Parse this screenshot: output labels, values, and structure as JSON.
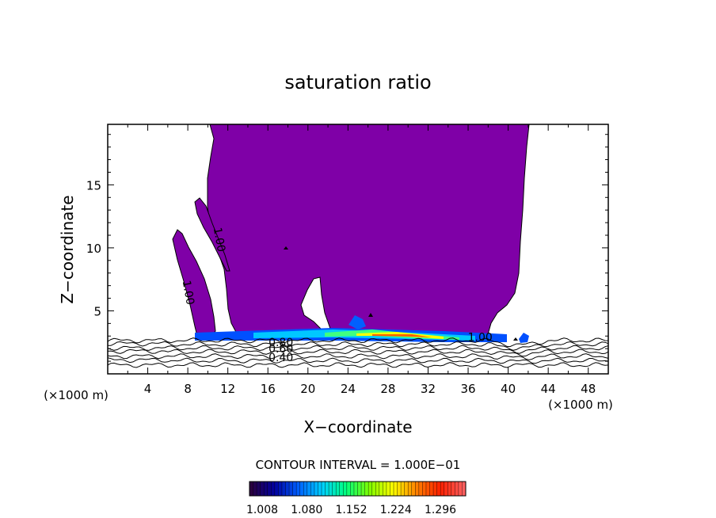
{
  "chart_data": {
    "type": "heatmap",
    "title": "saturation ratio",
    "xlabel": "X−coordinate",
    "ylabel": "Z−coordinate",
    "x_unit_label": "(×1000 m)",
    "x_unit_label_right": "(×1000 m)",
    "xlim": [
      0,
      50
    ],
    "ylim": [
      0,
      19.8
    ],
    "x_ticks": [
      4,
      8,
      12,
      16,
      20,
      24,
      28,
      32,
      36,
      40,
      44,
      48
    ],
    "x_tick_labels": [
      "4",
      "8",
      "12",
      "16",
      "20",
      "24",
      "28",
      "32",
      "36",
      "40",
      "44",
      "48"
    ],
    "y_ticks": [
      5,
      10,
      15
    ],
    "y_tick_labels": [
      "5",
      "10",
      "15"
    ],
    "contour_interval_text": "CONTOUR INTERVAL = 1.000E−01",
    "contour_labels": [
      {
        "text": "1.00",
        "x": 10.8,
        "z": 10.6,
        "rotation": 80
      },
      {
        "text": "1.00",
        "x": 7.7,
        "z": 6.4,
        "rotation": 80
      },
      {
        "text": "1.00",
        "x": 37.2,
        "z": 2.6,
        "rotation": 0
      },
      {
        "text": "0.80",
        "x": 17.3,
        "z": 2.2,
        "rotation": 0
      },
      {
        "text": "0.60",
        "x": 17.3,
        "z": 1.7,
        "rotation": 0
      },
      {
        "text": "0.40",
        "x": 17.3,
        "z": 1.0,
        "rotation": 0
      }
    ],
    "colorbar": {
      "min": 1.008,
      "max": 1.296,
      "tick_labels": [
        "1.008",
        "1.080",
        "1.152",
        "1.224",
        "1.296"
      ],
      "colors": [
        "#2a0040",
        "#0000a0",
        "#0060ff",
        "#00d0ff",
        "#00ff80",
        "#80ff00",
        "#ffff00",
        "#ff8000",
        "#ff2000",
        "#ff6060"
      ]
    },
    "fill_color_supersaturated": "#7f00a7",
    "grid": false,
    "legend": "colorbar-bottom"
  }
}
